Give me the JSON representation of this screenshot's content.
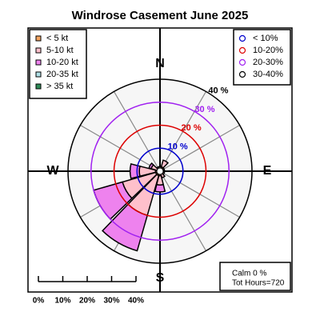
{
  "chart_data": {
    "type": "windrose",
    "title": "Windrose  Casement June 2025",
    "x": [
      0,
      30,
      60,
      90,
      120,
      150,
      180,
      210,
      240,
      270,
      300,
      330
    ],
    "series": [
      {
        "name": "< 5  kt",
        "color": "#f4a460",
        "values": [
          1,
          2,
          1,
          1,
          1,
          1,
          2,
          2,
          2,
          2,
          1,
          1
        ]
      },
      {
        "name": "5-10 kt",
        "color": "#ffc0cb",
        "values": [
          1,
          3,
          1,
          0,
          1,
          2,
          4,
          18,
          15,
          7,
          3,
          1
        ]
      },
      {
        "name": "10-20 kt",
        "color": "#ee82ee",
        "values": [
          0,
          0,
          0,
          0,
          0,
          0,
          3,
          16,
          13,
          4,
          1,
          0
        ]
      },
      {
        "name": "20-35 kt",
        "color": "#b0e0e6",
        "values": [
          0,
          0,
          0,
          0,
          0,
          0,
          0,
          0,
          0,
          0,
          0,
          0
        ]
      },
      {
        "name": "> 35 kt",
        "color": "#2e8b57",
        "values": [
          0,
          0,
          0,
          0,
          0,
          0,
          0,
          0,
          0,
          0,
          0,
          0
        ]
      }
    ],
    "rings": [
      {
        "value": 10,
        "label": "10 %",
        "legend": "< 10%",
        "color": "#0000cd"
      },
      {
        "value": 20,
        "label": "20 %",
        "legend": "10-20%",
        "color": "#dd0000"
      },
      {
        "value": 30,
        "label": "30 %",
        "legend": "20-30%",
        "color": "#a020f0"
      },
      {
        "value": 40,
        "label": "40 %",
        "legend": "30-40%",
        "color": "#000000"
      }
    ],
    "compass": [
      {
        "value": 0,
        "label": "N"
      },
      {
        "value": 90,
        "label": "E"
      },
      {
        "value": 180,
        "label": "S"
      },
      {
        "value": 270,
        "label": "W"
      }
    ],
    "scale_ticks": [
      {
        "value": 0,
        "label": "0%"
      },
      {
        "value": 10,
        "label": "10%"
      },
      {
        "value": 20,
        "label": "20%"
      },
      {
        "value": 30,
        "label": "30%"
      },
      {
        "value": 40,
        "label": "40%"
      }
    ],
    "annotations": [
      "Calm 0 %",
      "Tot Hours=720"
    ]
  }
}
